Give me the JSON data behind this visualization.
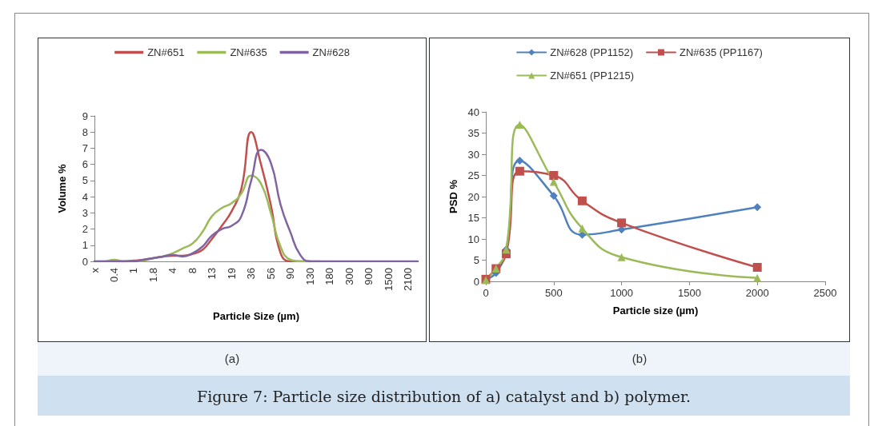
{
  "chart_data": [
    {
      "type": "line",
      "xlabel": "Particle Size (µm)",
      "ylabel": "Volume %",
      "categories": [
        "x",
        null,
        "0.4",
        null,
        "1",
        null,
        "1.8",
        null,
        "4",
        null,
        "8",
        null,
        "13",
        null,
        "19",
        null,
        "36",
        null,
        "56",
        null,
        "90",
        null,
        "130",
        null,
        "180",
        null,
        "300",
        null,
        "900",
        null,
        "1500",
        null,
        "2100",
        null
      ],
      "series": [
        {
          "name": "ZN#651",
          "color": "#c0504d",
          "values": [
            null,
            null,
            0,
            0,
            0.05,
            0.1,
            0.2,
            0.3,
            0.35,
            0.35,
            0.45,
            0.7,
            1.4,
            2.2,
            3.1,
            4.5,
            8.0,
            6.0,
            3.5,
            0.5,
            0,
            0,
            0,
            null,
            null,
            null,
            null,
            null,
            null,
            null,
            null,
            null,
            null,
            null
          ]
        },
        {
          "name": "ZN#635",
          "color": "#9bbb59",
          "values": [
            0,
            0,
            0.1,
            0,
            0,
            0.05,
            0.2,
            0.3,
            0.5,
            0.8,
            1.1,
            1.8,
            2.8,
            3.3,
            3.6,
            4.2,
            5.3,
            4.8,
            3.0,
            0.9,
            0.1,
            0,
            0,
            0,
            null,
            null,
            null,
            null,
            null,
            null,
            null,
            null,
            null,
            null
          ]
        },
        {
          "name": "ZN#628",
          "color": "#8064a2",
          "values": [
            0,
            0,
            0,
            0,
            0,
            0.1,
            0.2,
            0.3,
            0.4,
            0.3,
            0.5,
            0.9,
            1.6,
            2.0,
            2.2,
            2.8,
            5.0,
            6.9,
            6.1,
            3.5,
            1.8,
            0.4,
            0,
            0,
            0,
            0,
            0,
            0,
            0,
            0,
            0,
            0,
            0,
            0
          ]
        }
      ],
      "ylim": [
        0,
        9
      ],
      "yticks": [
        0,
        1,
        2,
        3,
        4,
        5,
        6,
        7,
        8,
        9
      ],
      "grid": false,
      "legend": "top",
      "marker": "none",
      "line_style": "solid",
      "annotations": [
        "(a)"
      ]
    },
    {
      "type": "line",
      "xlabel": "Particle size (µm)",
      "ylabel": "PSD %",
      "series": [
        {
          "name": "ZN#628 (PP1152)",
          "color": "#4f81bd",
          "marker": "diamond",
          "x": [
            0,
            75,
            150,
            250,
            500,
            710,
            1000,
            2000
          ],
          "values": [
            0.5,
            2,
            7.5,
            28.5,
            20.2,
            11,
            12.2,
            17.5
          ]
        },
        {
          "name": "ZN#635 (PP1167)",
          "color": "#c0504d",
          "marker": "square",
          "x": [
            0,
            75,
            150,
            250,
            500,
            710,
            1000,
            2000
          ],
          "values": [
            0.5,
            3,
            6.5,
            26,
            25,
            19,
            13.8,
            3.3
          ]
        },
        {
          "name": "ZN#651 (PP1215)",
          "color": "#9bbb59",
          "marker": "triangle",
          "x": [
            0,
            75,
            150,
            250,
            500,
            710,
            1000,
            2000
          ],
          "values": [
            0.3,
            3,
            7.5,
            37,
            23.5,
            12.5,
            5.7,
            0.8
          ]
        }
      ],
      "xlim": [
        0,
        2500
      ],
      "xticks": [
        0,
        500,
        1000,
        1500,
        2000,
        2500
      ],
      "ylim": [
        0,
        40
      ],
      "yticks": [
        0,
        5,
        10,
        15,
        20,
        25,
        30,
        35,
        40
      ],
      "grid": false,
      "legend": "top",
      "line_style": "solid",
      "annotations": [
        "(b)",
        "Figure 7: Particle size distribution of a) catalyst and b) polymer."
      ]
    }
  ]
}
